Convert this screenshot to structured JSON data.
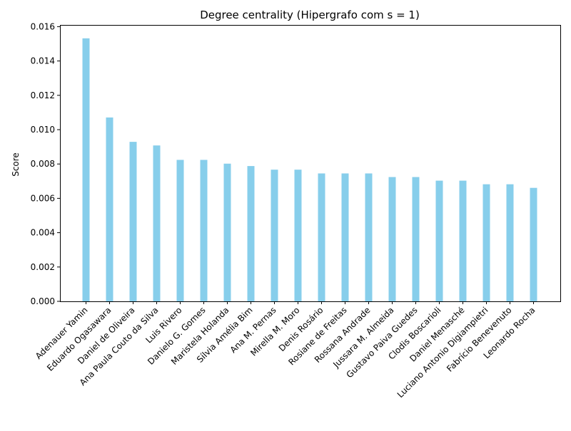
{
  "chart_data": {
    "type": "bar",
    "title": "Degree centrality (Hipergrafo com s = 1)",
    "xlabel": "",
    "ylabel": "Score",
    "ylim": [
      0,
      0.0161
    ],
    "yticks": [
      "0.000",
      "0.002",
      "0.004",
      "0.006",
      "0.008",
      "0.010",
      "0.012",
      "0.014",
      "0.016"
    ],
    "ytick_values": [
      0,
      0.002,
      0.004,
      0.006,
      0.008,
      0.01,
      0.012,
      0.014,
      0.016
    ],
    "grid": false,
    "bar_color": "#87ceeb",
    "categories": [
      "Adenauer Yamin",
      "Eduardo Ogasawara",
      "Daniel de Oliveira",
      "Ana Paula Couto da Silva",
      "Luis Rivero",
      "Danielo G. Gomes",
      "Maristela Holanda",
      "Sílvia Amélia Bim",
      "Ana M. Pernas",
      "Mirella M. Moro",
      "Denis Rosário",
      "Rosiane de Freitas",
      "Rossana Andrade",
      "Jussara M. Almeida",
      "Gustavo Paiva Guedes",
      "Clodis Boscarioli",
      "Daniel Menasché",
      "Luciano Antonio Digiampietri",
      "Fabrício Benevenuto",
      "Leonardo Rocha"
    ],
    "values": [
      0.01532,
      0.01071,
      0.00929,
      0.00908,
      0.00824,
      0.00824,
      0.00802,
      0.00788,
      0.00767,
      0.00767,
      0.00745,
      0.00745,
      0.00745,
      0.00724,
      0.00724,
      0.00703,
      0.00703,
      0.00682,
      0.00682,
      0.00661
    ]
  }
}
